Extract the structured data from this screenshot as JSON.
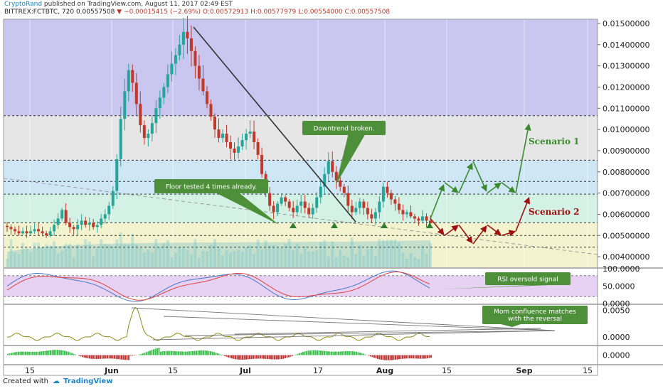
{
  "header": {
    "author": "CryptoRand",
    "published": "published on TradingView.com, August 11, 2017 02:49 EST",
    "symbol": "BITTREX:FCTBTC, 720",
    "price": "0.00557508",
    "change": "−0.00015415 (−2.69%)",
    "ohlc": "O:0.00572913 H:0.00577979 L:0.00554000 C:0.00557508"
  },
  "footer": {
    "created_with": "Created with",
    "brand": "TradingView"
  },
  "colors": {
    "up": "#26a69a",
    "down": "#c0392b",
    "zone_purple": "#c9c6f0",
    "zone_grey": "#e6e6e6",
    "zone_blue": "#cfe6f5",
    "zone_green": "#d3f1e4",
    "zone_yellow": "#f3f4cf",
    "annotation_box": "#4e8f3a",
    "scenario1": "#3c8a2e",
    "scenario2": "#a01010",
    "rsi_band": "#e7d2f3"
  },
  "annotations": {
    "floor": "Floor tested 4 times already.",
    "downtrend": "Downtrend broken.",
    "rsi": "RSI oversold signal",
    "mom1": "Mom confluence matches",
    "mom2": "with the reversal",
    "scenario1": "Scenario 1",
    "scenario2": "Scenario 2"
  },
  "chart_data": [
    {
      "type": "candlestick",
      "panel": "price",
      "ylim": [
        0.0035,
        0.0152
      ],
      "y_ticks": [
        "0.01500000",
        "0.01400000",
        "0.01300000",
        "0.01200000",
        "0.01100000",
        "0.01000000",
        "0.00900000",
        "0.00800000",
        "0.00700000",
        "0.00600000",
        "0.00500000",
        "0.00400000"
      ],
      "x_ticks": [
        {
          "label": "15",
          "bold": false
        },
        {
          "label": "Jun",
          "bold": true
        },
        {
          "label": "15",
          "bold": false
        },
        {
          "label": "Jul",
          "bold": true
        },
        {
          "label": "17",
          "bold": false
        },
        {
          "label": "Aug",
          "bold": true
        },
        {
          "label": "15",
          "bold": false
        },
        {
          "label": "Sep",
          "bold": true
        },
        {
          "label": "15",
          "bold": false
        }
      ],
      "levels": [
        0.01065,
        0.00855,
        0.00755,
        0.00695,
        0.0056,
        0.005,
        0.00445
      ],
      "zones": [
        {
          "from": 0.01065,
          "to": 0.0152,
          "color": "zone_purple"
        },
        {
          "from": 0.00855,
          "to": 0.01065,
          "color": "zone_grey"
        },
        {
          "from": 0.00695,
          "to": 0.00855,
          "color": "zone_blue"
        },
        {
          "from": 0.0056,
          "to": 0.00695,
          "color": "zone_green"
        },
        {
          "from": 0.0035,
          "to": 0.0056,
          "color": "zone_yellow"
        }
      ],
      "close_path": [
        0.0054,
        0.0053,
        0.0052,
        0.0051,
        0.0052,
        0.0051,
        0.0052,
        0.0053,
        0.0052,
        0.0051,
        0.005,
        0.0052,
        0.0055,
        0.0058,
        0.0062,
        0.0056,
        0.0054,
        0.0053,
        0.0055,
        0.0057,
        0.0055,
        0.0056,
        0.0054,
        0.0055,
        0.0058,
        0.006,
        0.0064,
        0.0071,
        0.0086,
        0.0105,
        0.0118,
        0.0128,
        0.0122,
        0.0112,
        0.0102,
        0.0096,
        0.0098,
        0.0103,
        0.011,
        0.0115,
        0.012,
        0.0126,
        0.0131,
        0.0135,
        0.014,
        0.0146,
        0.0143,
        0.0137,
        0.013,
        0.0124,
        0.0118,
        0.0112,
        0.0106,
        0.01,
        0.0096,
        0.0098,
        0.0094,
        0.0091,
        0.0089,
        0.0092,
        0.0095,
        0.0098,
        0.0099,
        0.0094,
        0.0088,
        0.0079,
        0.007,
        0.0064,
        0.0061,
        0.0065,
        0.0068,
        0.0066,
        0.0063,
        0.0061,
        0.0064,
        0.0066,
        0.0063,
        0.006,
        0.0063,
        0.0068,
        0.0073,
        0.0079,
        0.0085,
        0.008,
        0.0076,
        0.0073,
        0.007,
        0.0064,
        0.0061,
        0.0063,
        0.0066,
        0.0063,
        0.006,
        0.0058,
        0.0061,
        0.0066,
        0.0073,
        0.007,
        0.0067,
        0.0065,
        0.0062,
        0.006,
        0.0061,
        0.0059,
        0.0058,
        0.0057,
        0.0059,
        0.0057,
        0.00557508
      ],
      "scenario1_path": [
        0.0058,
        0.0075,
        0.007,
        0.0085,
        0.007,
        0.0075,
        0.007,
        0.0105
      ],
      "scenario2_path": [
        0.0058,
        0.005,
        0.0055,
        0.0046,
        0.0055,
        0.005,
        0.0052,
        0.0069
      ]
    },
    {
      "type": "line",
      "panel": "rsi",
      "ylim": [
        0,
        100
      ],
      "y_ticks": [
        "100.0000",
        "50.0000",
        "0.0000"
      ]
    },
    {
      "type": "line",
      "panel": "momentum",
      "ylim": [
        -0.0015,
        0.006
      ],
      "y_ticks": [
        "0.0050",
        "0.0000"
      ]
    },
    {
      "type": "bar",
      "panel": "histogram",
      "ylim": [
        -0.001,
        0.001
      ],
      "y_ticks": [
        "0.0000"
      ]
    }
  ]
}
